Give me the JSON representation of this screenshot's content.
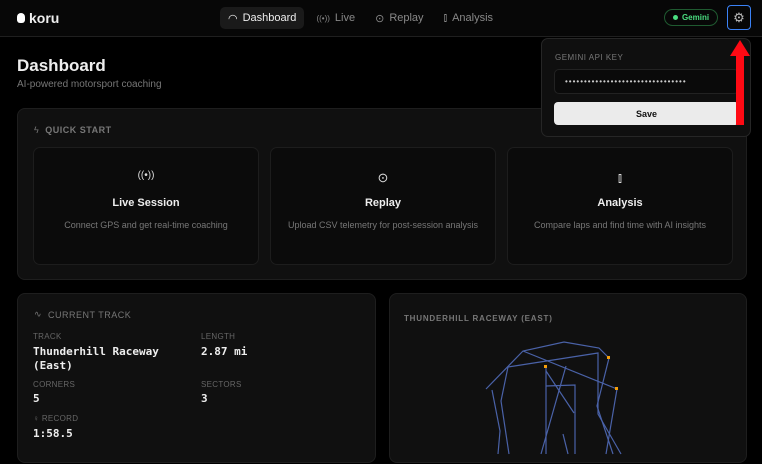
{
  "app": {
    "name": "koru"
  },
  "nav": {
    "tabs": [
      {
        "label": "Dashboard",
        "icon": "gauge-icon",
        "active": true
      },
      {
        "label": "Live",
        "icon": "broadcast-icon"
      },
      {
        "label": "Replay",
        "icon": "play-circle-icon"
      },
      {
        "label": "Analysis",
        "icon": "bar-chart-icon"
      }
    ]
  },
  "status": {
    "label": "Gemini",
    "color": "#4ade80"
  },
  "settings": {
    "icon": "gear-icon",
    "api_key_label": "GEMINI API KEY",
    "api_key_value": "••••••••••••••••••••••••••••••••",
    "save_label": "Save"
  },
  "page": {
    "title": "Dashboard",
    "subtitle": "AI-powered motorsport coaching"
  },
  "quick_start": {
    "title": "QUICK START",
    "cards": [
      {
        "title": "Live Session",
        "desc": "Connect GPS and get real-time coaching",
        "icon": "broadcast-icon"
      },
      {
        "title": "Replay",
        "desc": "Upload CSV telemetry for post-session analysis",
        "icon": "play-circle-icon"
      },
      {
        "title": "Analysis",
        "desc": "Compare laps and find time with AI insights",
        "icon": "bar-chart-icon"
      }
    ]
  },
  "current_track": {
    "title": "CURRENT TRACK",
    "track_label": "TRACK",
    "track": "Thunderhill Raceway (East)",
    "length_label": "LENGTH",
    "length": "2.87 mi",
    "corners_label": "CORNERS",
    "corners": "5",
    "sectors_label": "SECTORS",
    "sectors": "3",
    "record_label": "RECORD",
    "record": "1:58.5"
  },
  "track_map": {
    "title": "THUNDERHILL RACEWAY (EAST)",
    "line_color": "#4a62a8",
    "marker_color": "#f59e0b"
  },
  "accent": "#3b82f6"
}
